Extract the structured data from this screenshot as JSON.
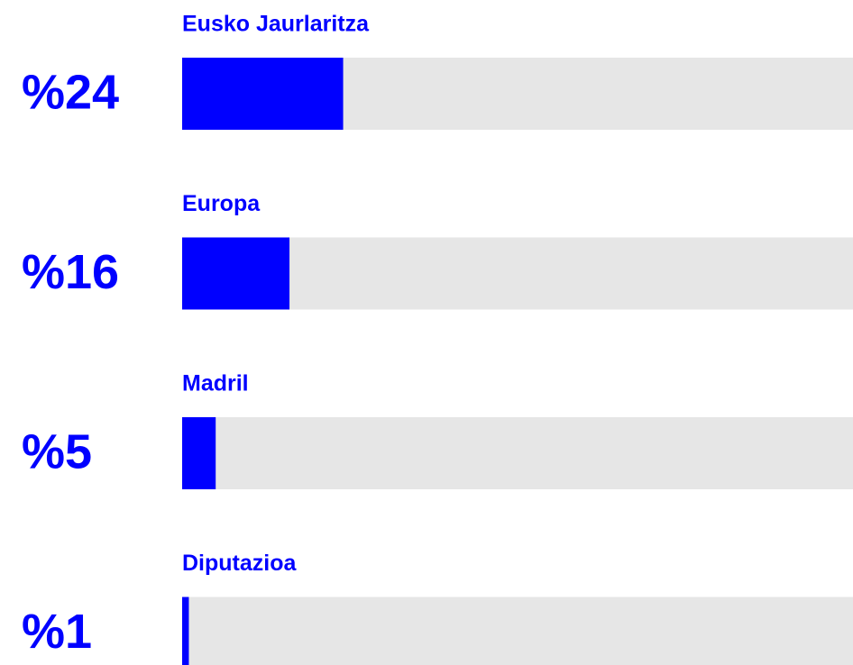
{
  "chart_data": {
    "type": "bar",
    "orientation": "horizontal",
    "categories": [
      "Eusko Jaurlaritza",
      "Europa",
      "Madril",
      "Diputazioa"
    ],
    "values": [
      24,
      16,
      5,
      1
    ],
    "value_labels": [
      "%24",
      "%16",
      "%5",
      "%1"
    ],
    "color": "#0000ff",
    "track_color": "#e6e6e6",
    "xlim": [
      0,
      100
    ]
  }
}
